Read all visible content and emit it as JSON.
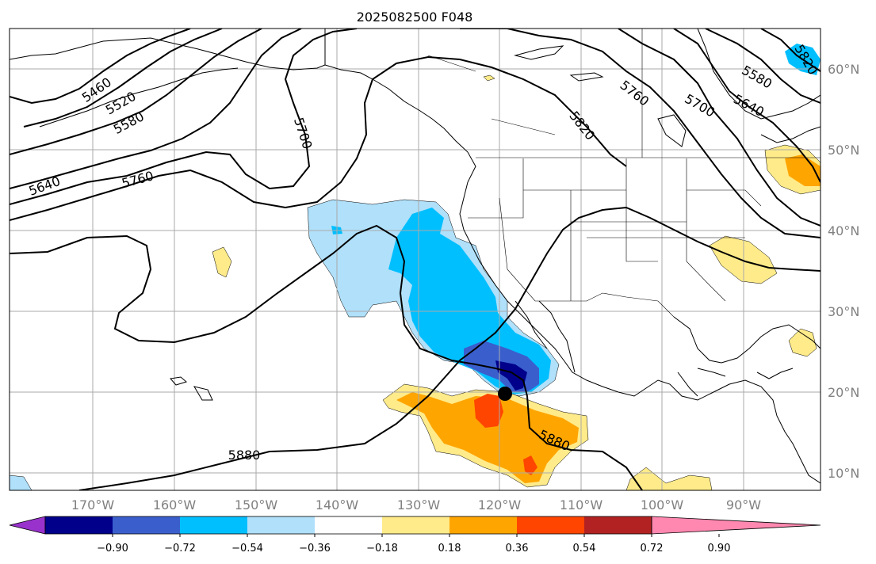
{
  "title": "2025082500 F048",
  "lon_labels": [
    "170°W",
    "160°W",
    "150°W",
    "140°W",
    "130°W",
    "120°W",
    "110°W",
    "100°W",
    "90°W"
  ],
  "lat_labels": [
    "60°N",
    "50°N",
    "40°N",
    "30°N",
    "20°N",
    "10°N"
  ],
  "contour_labels": [
    "5460",
    "5520",
    "5580",
    "5640",
    "5700",
    "5760",
    "5820",
    "5880",
    "5580",
    "5640",
    "5700",
    "5760",
    "5820",
    "5880"
  ],
  "colorbar": {
    "tick_labels": [
      "−0.90",
      "−0.72",
      "−0.54",
      "−0.36",
      "−0.18",
      "0.18",
      "0.36",
      "0.54",
      "0.72",
      "0.90"
    ],
    "colors": [
      "#9932cc",
      "#00008b",
      "#3a5fcd",
      "#00bfff",
      "#b0e0fa",
      "#ffffff",
      "#ffeb8a",
      "#ffa500",
      "#ff4500",
      "#b22222",
      "#ff88b0"
    ]
  },
  "marker": {
    "name": "center-point",
    "lon": -118.5,
    "lat": 20
  }
}
